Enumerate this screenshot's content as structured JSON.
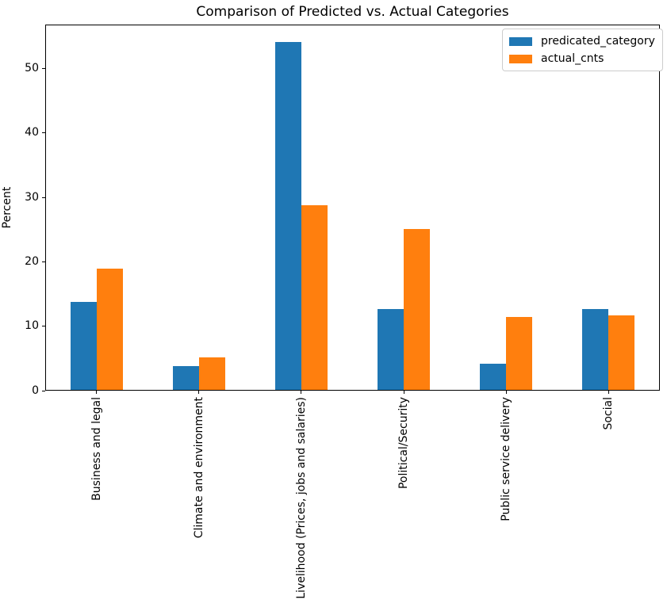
{
  "chart_data": {
    "type": "bar",
    "title": "Comparison of Predicted vs. Actual Categories",
    "ylabel": "Percent",
    "xlabel": "",
    "categories": [
      "Business and legal",
      "Climate and environment",
      "Livelihood (Prices, jobs and salaries)",
      "Political/Security",
      "Public service delivery",
      "Social"
    ],
    "series": [
      {
        "name": "predicated_category",
        "color": "#1f77b4",
        "values": [
          13.6,
          3.7,
          54.0,
          12.5,
          4.1,
          12.5
        ]
      },
      {
        "name": "actual_cnts",
        "color": "#ff7f0e",
        "values": [
          18.8,
          5.0,
          28.7,
          25.0,
          11.3,
          11.6
        ]
      }
    ],
    "ylim": [
      0,
      56.85
    ],
    "yticks": [
      0,
      10,
      20,
      30,
      40,
      50
    ],
    "grid": false,
    "legend_position": "upper right"
  }
}
